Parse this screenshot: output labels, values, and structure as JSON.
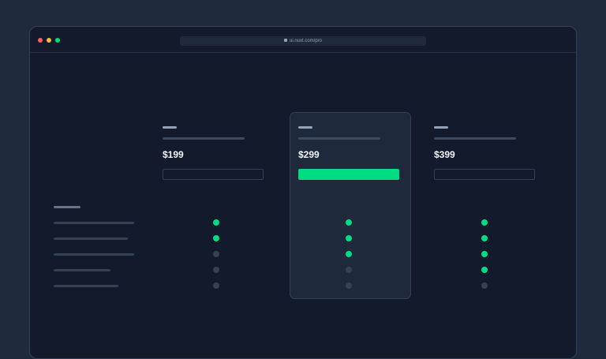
{
  "browser": {
    "url": "ui.nuxt.com/pro",
    "traffic_lights": [
      "#ff5f57",
      "#febc2e",
      "#00dc82"
    ]
  },
  "colors": {
    "accent": "#00dc82",
    "inactive": "#374151"
  },
  "plans": [
    {
      "price": "$199",
      "highlighted": false,
      "features": [
        true,
        true,
        false,
        false,
        false
      ]
    },
    {
      "price": "$299",
      "highlighted": true,
      "features": [
        true,
        true,
        true,
        false,
        false
      ]
    },
    {
      "price": "$399",
      "highlighted": false,
      "features": [
        true,
        true,
        true,
        true,
        false
      ]
    }
  ]
}
